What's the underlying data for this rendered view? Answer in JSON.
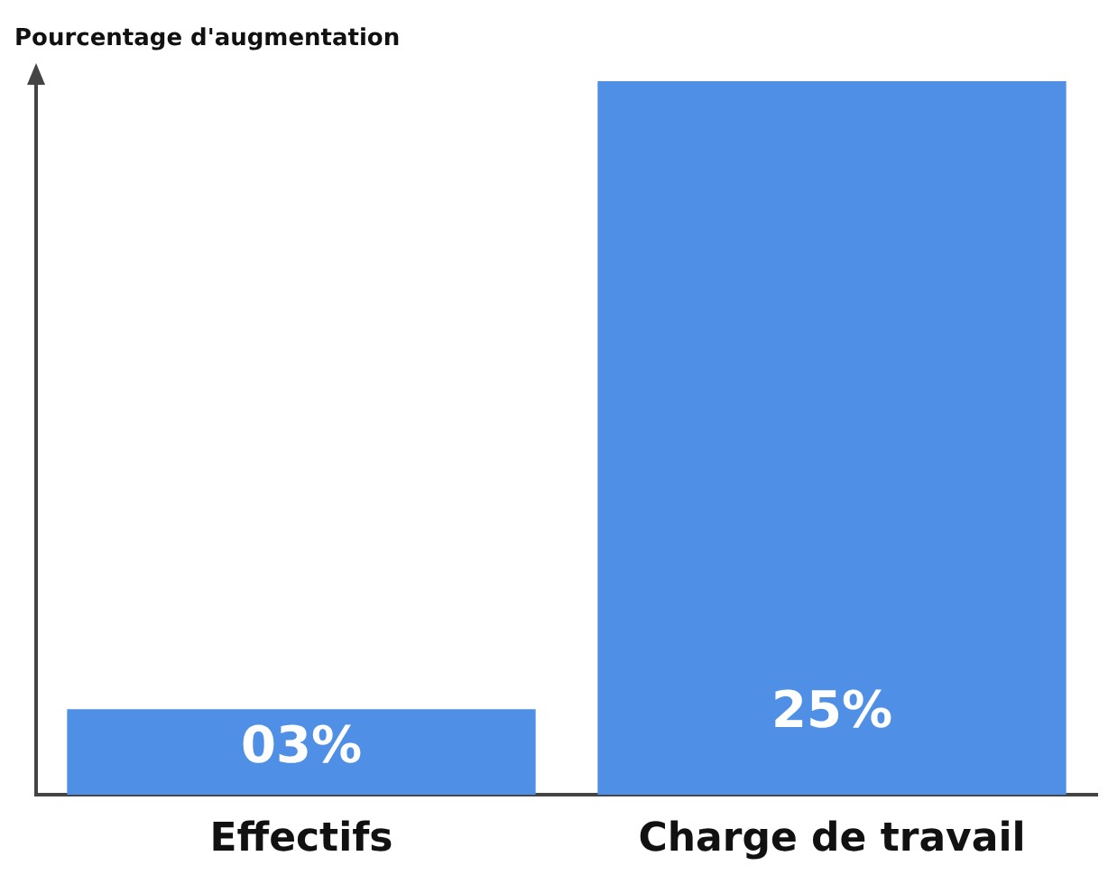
{
  "chart_data": {
    "type": "bar",
    "ylabel": "Pourcentage d'augmentation",
    "categories": [
      "Effectifs",
      "Charge de travail"
    ],
    "values": [
      3,
      25
    ],
    "value_labels": [
      "03%",
      "25%"
    ],
    "color": "#4f8fe6",
    "grid": false,
    "legend": false
  }
}
